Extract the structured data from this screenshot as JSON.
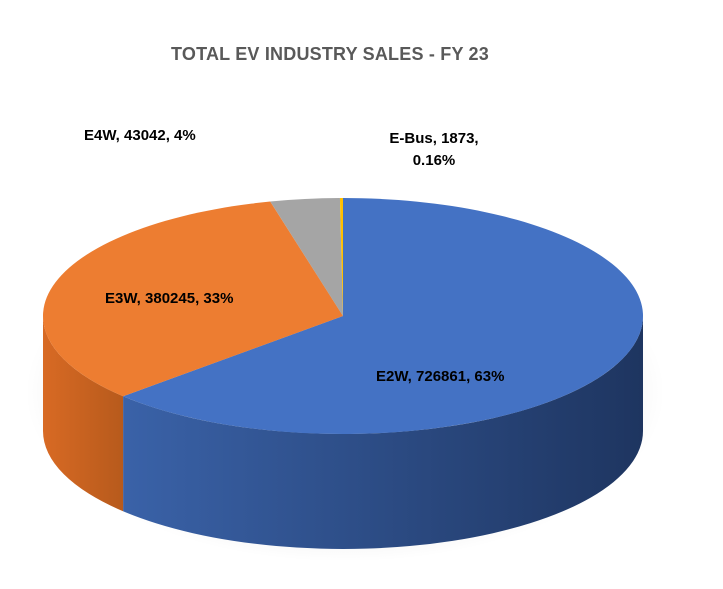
{
  "chart_data": {
    "type": "pie",
    "title": "TOTAL EV INDUSTRY SALES - FY 23",
    "slices": [
      {
        "category": "E2W",
        "value": 726861,
        "percent": "63%",
        "label": "E2W, 726861, 63%",
        "color": "#4472C4",
        "side_color": "#2B4C86"
      },
      {
        "category": "E3W",
        "value": 380245,
        "percent": "33%",
        "label": "E3W, 380245, 33%",
        "color": "#ED7D31",
        "side_color": "#B45A1E"
      },
      {
        "category": "E4W",
        "value": 43042,
        "percent": "4%",
        "label": "E4W, 43042, 4%",
        "color": "#A5A5A5",
        "side_color": "#7A7A7A"
      },
      {
        "category": "E-Bus",
        "value": 1873,
        "percent": "0.16%",
        "label_lines": [
          "E-Bus, 1873,",
          "0.16%"
        ],
        "color": "#FFC000",
        "side_color": "#C09000"
      }
    ],
    "legend": "none",
    "grid": false,
    "style": "3d-pie"
  }
}
